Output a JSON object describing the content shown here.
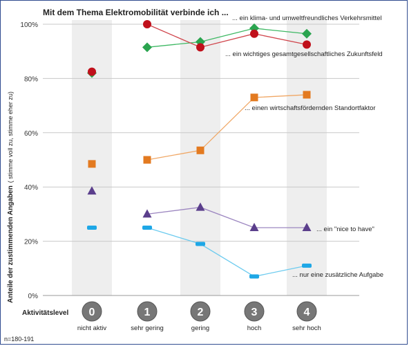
{
  "chart_data": {
    "type": "line",
    "title": "Mit dem Thema Elektromobilität verbinde ich ...",
    "ylabel_main": "Anteile der zustimmenden Angaben",
    "ylabel_sub": "( stimme voll zu, stimme eher zu)",
    "xlabel": "Aktivitätslevel",
    "note": "n=180-191",
    "ylim": [
      0,
      100
    ],
    "y_ticks": [
      "0%",
      "20%",
      "40%",
      "60%",
      "80%",
      "100%"
    ],
    "categories": [
      {
        "num": "0",
        "label": "nicht aktiv"
      },
      {
        "num": "1",
        "label": "sehr gering"
      },
      {
        "num": "2",
        "label": "gering"
      },
      {
        "num": "3",
        "label": "hoch"
      },
      {
        "num": "4",
        "label": "sehr hoch"
      }
    ],
    "grid": true,
    "series": [
      {
        "name": "... ein klima- und umweltfreundliches Verkehrsmittel",
        "marker": "diamond",
        "color": "#2aa44f",
        "line_color": "#3db863",
        "values": [
          82,
          91.5,
          93.5,
          98.5,
          96.5
        ]
      },
      {
        "name": "... ein wichtiges gesamtgesellschaftliches Zukunftsfeld",
        "marker": "circle",
        "color": "#c0101b",
        "line_color": "#d0454c",
        "values": [
          82.5,
          100,
          91.5,
          96.5,
          92.5
        ]
      },
      {
        "name": "... einen wirtschaftsfördernden Standortfaktor",
        "marker": "square",
        "color": "#e37a20",
        "line_color": "#f0a765",
        "values": [
          48.5,
          50,
          53.5,
          73,
          74
        ]
      },
      {
        "name": "... ein \"nice to have\"",
        "marker": "triangle",
        "color": "#5b3f8c",
        "line_color": "#9c86c0",
        "values": [
          38.5,
          30,
          32.5,
          25,
          25
        ]
      },
      {
        "name": "... nur eine zusätzliche Aufgabe",
        "marker": "dash",
        "color": "#1ea7e6",
        "line_color": "#6ccbef",
        "values": [
          25,
          25,
          19,
          7,
          11
        ]
      }
    ]
  }
}
